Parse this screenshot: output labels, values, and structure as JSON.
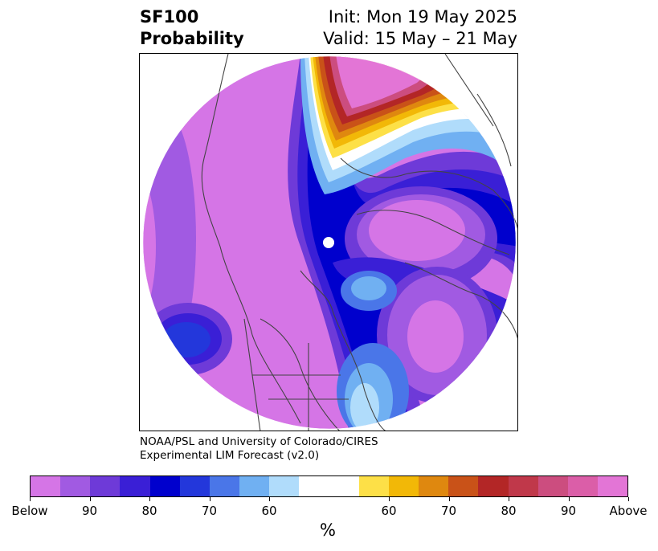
{
  "title": {
    "left_line1": "SF100",
    "left_line2": "Probability",
    "right_line1": "Init: Mon 19 May 2025",
    "right_line2": "Valid: 15 May – 21 May"
  },
  "credit": {
    "line1": "NOAA/PSL and University of Colorado/CIRES",
    "line2": "Experimental LIM Forecast (v2.0)"
  },
  "colorbar": {
    "unit": "%",
    "colors": [
      "#d575e6",
      "#a15ae2",
      "#6e3ad8",
      "#3a1fd6",
      "#0000cd",
      "#2337db",
      "#4a76e8",
      "#70b0f2",
      "#b0dcfb",
      "#ffffff",
      "#ffffff",
      "#fde047",
      "#f2b807",
      "#df880f",
      "#c95218",
      "#b32626",
      "#c0384a",
      "#cc4d7f",
      "#db5ea8",
      "#e375d6"
    ],
    "tick_labels": [
      "Below",
      "90",
      "80",
      "70",
      "60",
      "60",
      "70",
      "80",
      "90",
      "Above"
    ]
  },
  "colors": {
    "below_extreme": "#d575e6",
    "below_strong": "#0000cd",
    "above_extreme": "#e375d6",
    "above_mid": "#f2b807",
    "coastline": "#444444"
  }
}
